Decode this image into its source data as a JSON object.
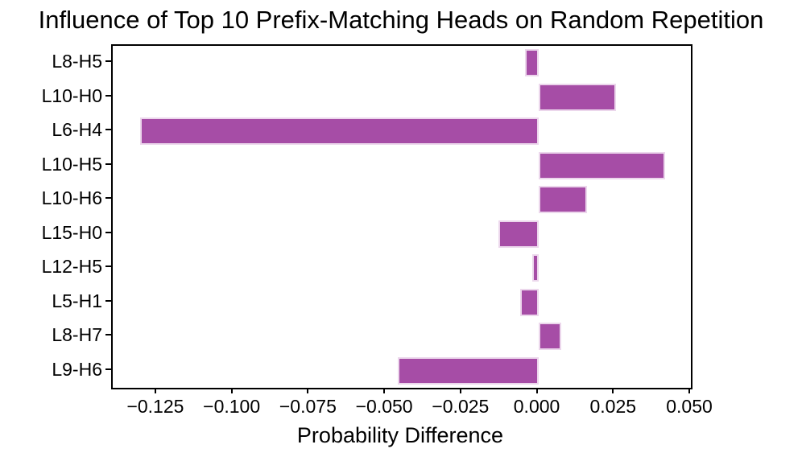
{
  "chart_data": {
    "type": "bar",
    "orientation": "horizontal",
    "title": "Influence of Top 10 Prefix-Matching Heads on Random Repetition",
    "xlabel": "Probability Difference",
    "ylabel": "",
    "categories": [
      "L8-H5",
      "L10-H0",
      "L6-H4",
      "L10-H5",
      "L10-H6",
      "L15-H0",
      "L12-H5",
      "L5-H1",
      "L8-H7",
      "L9-H6"
    ],
    "values": [
      -0.0045,
      0.0255,
      -0.1305,
      0.0415,
      0.016,
      -0.013,
      -0.002,
      -0.006,
      0.0075,
      -0.046
    ],
    "xlim": [
      -0.1395,
      0.05
    ],
    "xticks": [
      -0.125,
      -0.1,
      -0.075,
      -0.05,
      -0.025,
      0.0,
      0.025,
      0.05
    ],
    "xtick_labels": [
      "−0.125",
      "−0.100",
      "−0.075",
      "−0.050",
      "−0.025",
      "0.000",
      "0.025",
      "0.050"
    ],
    "grid": false,
    "legend": null,
    "bar_color": "#a64da6",
    "bar_edge_color": "#ecd7ec",
    "axis_color": "#000000",
    "text_color": "#000000",
    "background_color": "#ffffff"
  }
}
